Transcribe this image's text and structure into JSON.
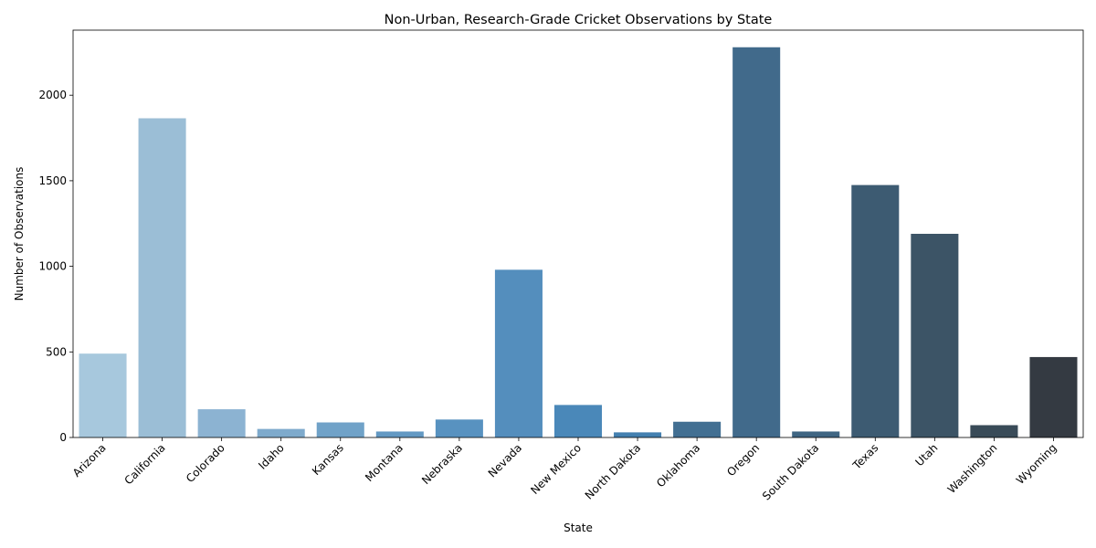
{
  "chart_data": {
    "type": "bar",
    "title": "Non-Urban, Research-Grade Cricket Observations by State",
    "xlabel": "State",
    "ylabel": "Number of Observations",
    "ylim": [
      0,
      2380
    ],
    "yticks": [
      0,
      500,
      1000,
      1500,
      2000
    ],
    "grid": false,
    "legend": "none",
    "categories": [
      "Arizona",
      "California",
      "Colorado",
      "Idaho",
      "Kansas",
      "Montana",
      "Nebraska",
      "Nevada",
      "New Mexico",
      "North Dakota",
      "Oklahoma",
      "Oregon",
      "South Dakota",
      "Texas",
      "Utah",
      "Washington",
      "Wyoming"
    ],
    "values": [
      490,
      1865,
      165,
      50,
      88,
      35,
      105,
      980,
      190,
      30,
      92,
      2280,
      35,
      1475,
      1190,
      72,
      470
    ],
    "colors": [
      "#a7c8dd",
      "#9bbed6",
      "#8cb3d2",
      "#7eaacc",
      "#70a2c8",
      "#6399c3",
      "#5892c0",
      "#548ebd",
      "#4a88b9",
      "#4480b0",
      "#426f92",
      "#416a8b",
      "#3f6582",
      "#3d5b72",
      "#3c5466",
      "#394b58",
      "#343a42"
    ]
  }
}
